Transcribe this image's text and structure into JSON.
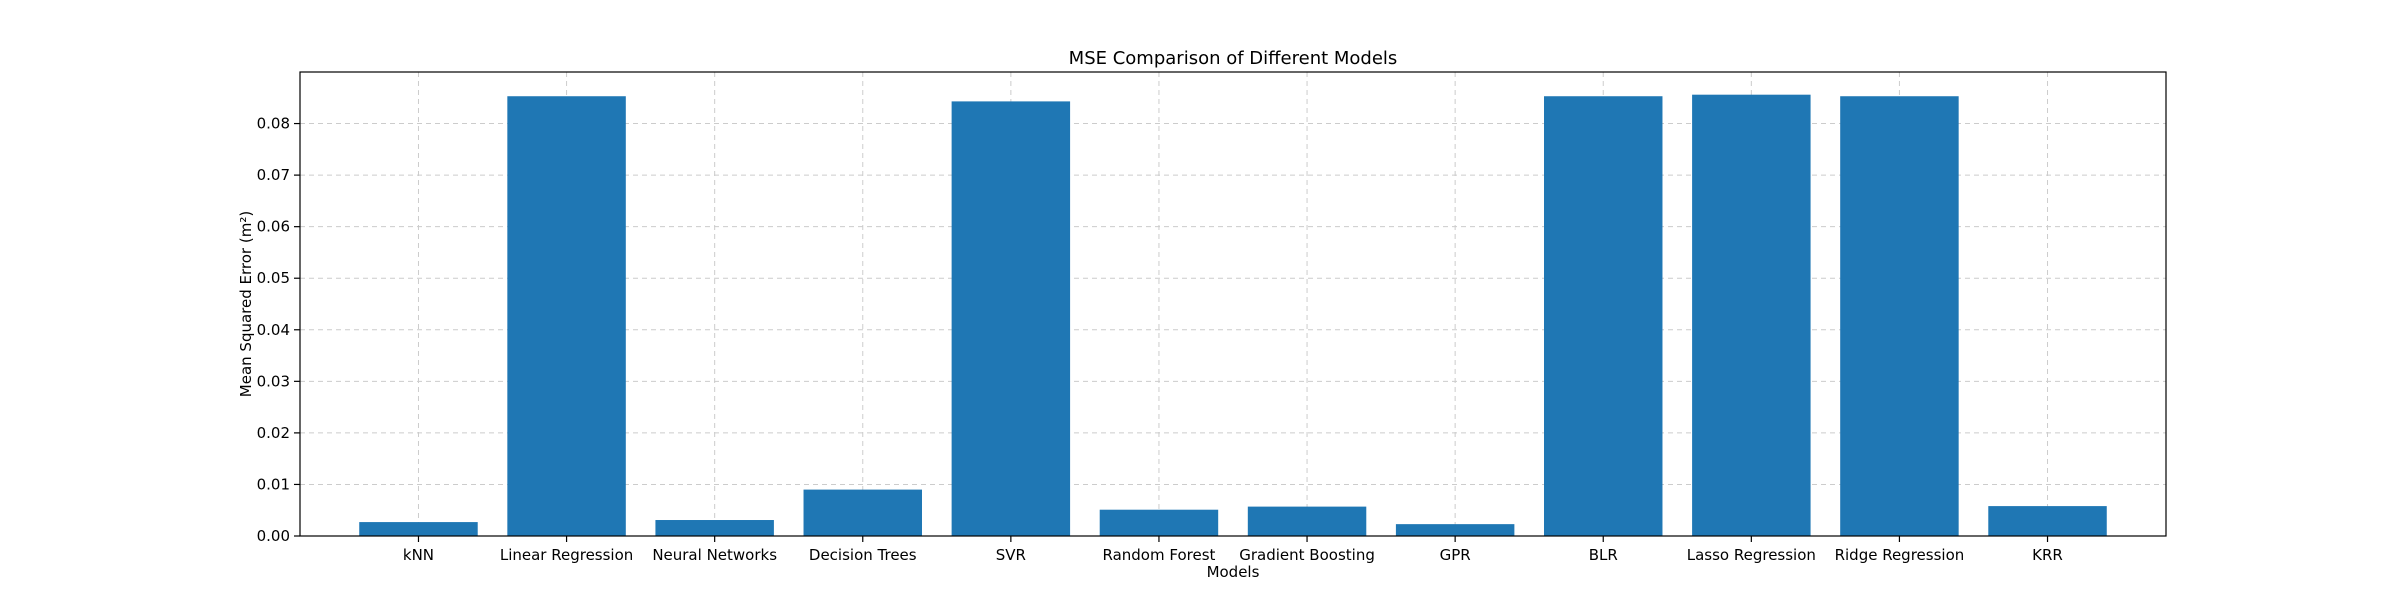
{
  "chart_data": {
    "type": "bar",
    "title": "MSE Comparison of Different Models",
    "xlabel": "Models",
    "ylabel": "Mean Squared Error (m²)",
    "categories": [
      "kNN",
      "Linear Regression",
      "Neural Networks",
      "Decision Trees",
      "SVR",
      "Random Forest",
      "Gradient Boosting",
      "GPR",
      "BLR",
      "Lasso Regression",
      "Ridge Regression",
      "KRR"
    ],
    "values": [
      0.0027,
      0.0853,
      0.0031,
      0.009,
      0.0843,
      0.0051,
      0.0057,
      0.0023,
      0.0853,
      0.0856,
      0.0853,
      0.0058
    ],
    "ylim": [
      0,
      0.09
    ],
    "yticks": [
      "0.00",
      "0.01",
      "0.02",
      "0.03",
      "0.04",
      "0.05",
      "0.06",
      "0.07",
      "0.08"
    ],
    "grid": true,
    "bar_color": "#1f77b4"
  }
}
